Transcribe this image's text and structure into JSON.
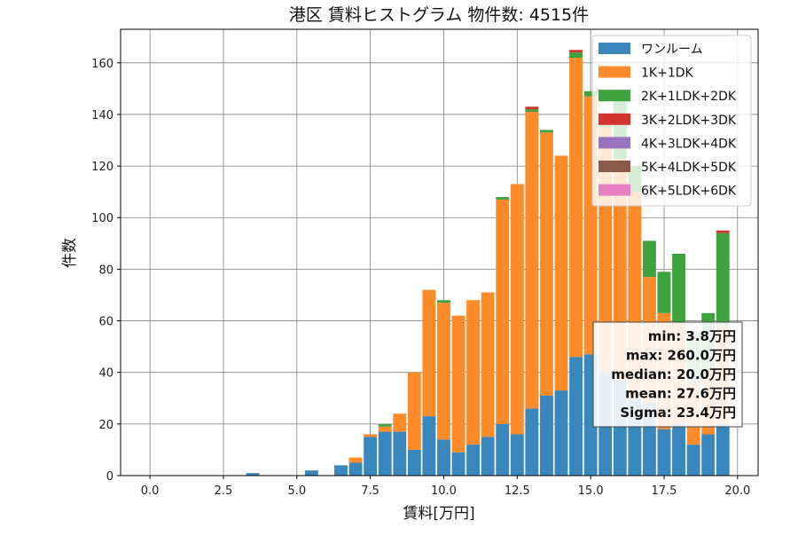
{
  "chart_data": {
    "type": "bar",
    "stacked": true,
    "title": "港区 賃料ヒストグラム  物件数: 4515件",
    "xlabel": "賃料[万円]",
    "ylabel": "件数",
    "xlim": [
      -1.0,
      20.7
    ],
    "ylim": [
      0,
      173
    ],
    "xticks": [
      0.0,
      2.5,
      5.0,
      7.5,
      10.0,
      12.5,
      15.0,
      17.5,
      20.0
    ],
    "xtick_labels": [
      "0.0",
      "2.5",
      "5.0",
      "7.5",
      "10.0",
      "12.5",
      "15.0",
      "17.5",
      "20.0"
    ],
    "yticks": [
      0,
      20,
      40,
      60,
      80,
      100,
      120,
      140,
      160
    ],
    "ytick_labels": [
      "0",
      "20",
      "40",
      "60",
      "80",
      "100",
      "120",
      "140",
      "160"
    ],
    "grid": true,
    "legend_position": "top-right",
    "bin_width": 0.5,
    "x": [
      3.5,
      5.5,
      6.5,
      7.0,
      7.5,
      8.0,
      8.5,
      9.0,
      9.5,
      10.0,
      10.5,
      11.0,
      11.5,
      12.0,
      12.5,
      13.0,
      13.5,
      14.0,
      14.5,
      15.0,
      15.5,
      16.0,
      16.5,
      17.0,
      17.5,
      18.0,
      18.5,
      19.0,
      19.5
    ],
    "series": [
      {
        "name": "ワンルーム",
        "color": "#3a87be",
        "values": [
          1,
          2,
          4,
          5,
          15,
          17,
          17,
          10,
          23,
          14,
          9,
          12,
          15,
          20,
          16,
          26,
          31,
          33,
          46,
          47,
          40,
          37,
          30,
          28,
          18,
          20,
          12,
          16,
          20
        ]
      },
      {
        "name": "1K+1DK",
        "color": "#fd8b2a",
        "values": [
          0,
          0,
          0,
          2,
          1,
          2,
          7,
          30,
          49,
          53,
          53,
          56,
          56,
          87,
          97,
          115,
          102,
          91,
          116,
          100,
          95,
          86,
          80,
          49,
          45,
          39,
          24,
          25,
          38
        ]
      },
      {
        "name": "2K+1LDK+2DK",
        "color": "#3ea33f",
        "values": [
          0,
          0,
          0,
          0,
          0,
          1,
          0,
          0,
          0,
          1,
          0,
          0,
          0,
          1,
          0,
          1,
          1,
          0,
          2,
          2,
          3,
          22,
          10,
          14,
          16,
          27,
          20,
          22,
          36
        ]
      },
      {
        "name": "3K+2LDK+3DK",
        "color": "#d5332e",
        "values": [
          0,
          0,
          0,
          0,
          0,
          0,
          0,
          0,
          0,
          0,
          0,
          0,
          0,
          0,
          0,
          1,
          0,
          0,
          1,
          0,
          0,
          0,
          0,
          0,
          0,
          0,
          0,
          0,
          1
        ]
      },
      {
        "name": "4K+3LDK+4DK",
        "color": "#9a72c0",
        "values": [
          0,
          0,
          0,
          0,
          0,
          0,
          0,
          0,
          0,
          0,
          0,
          0,
          0,
          0,
          0,
          0,
          0,
          0,
          0,
          0,
          0,
          0,
          0,
          0,
          0,
          0,
          0,
          0,
          0
        ]
      },
      {
        "name": "5K+4LDK+5DK",
        "color": "#8c5a4b",
        "values": [
          0,
          0,
          0,
          0,
          0,
          0,
          0,
          0,
          0,
          0,
          0,
          0,
          0,
          0,
          0,
          0,
          0,
          0,
          0,
          0,
          0,
          0,
          0,
          0,
          0,
          0,
          0,
          0,
          0
        ]
      },
      {
        "name": "6K+5LDK+6DK",
        "color": "#e57fc2",
        "values": [
          0,
          0,
          0,
          0,
          0,
          0,
          0,
          0,
          0,
          0,
          0,
          0,
          0,
          0,
          0,
          0,
          0,
          0,
          0,
          0,
          0,
          0,
          0,
          0,
          0,
          0,
          0,
          0,
          0
        ]
      }
    ],
    "stats": [
      "min: 3.8万円",
      "max: 260.0万円",
      "median: 20.0万円",
      "mean: 27.6万円",
      "Sigma: 23.4万円"
    ]
  }
}
